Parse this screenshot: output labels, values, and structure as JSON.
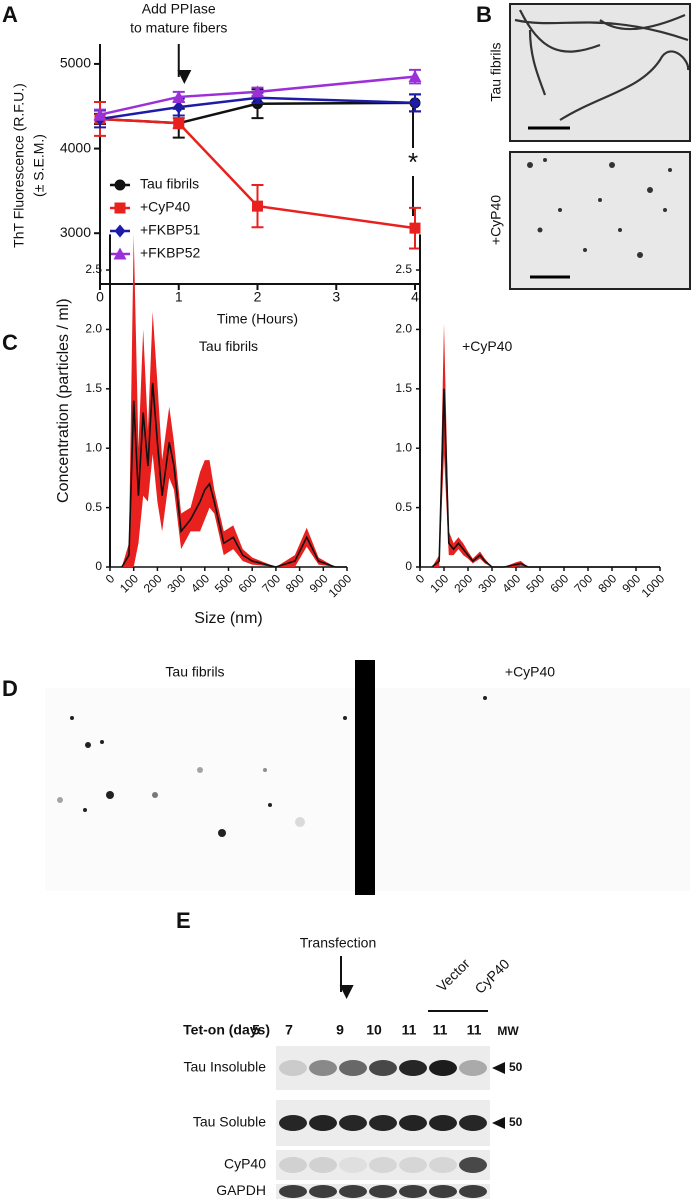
{
  "panel_labels": [
    "A",
    "B",
    "C",
    "D",
    "E"
  ],
  "chart_data": [
    {
      "type": "line",
      "xlabel": "Time (Hours)",
      "ylabel": [
        "ThT Fluorescence (R.F.U.)",
        "(± S.E.M.)"
      ],
      "annotation": [
        "Add PPIase",
        "to mature fibers"
      ],
      "significance": "*",
      "x": [
        0,
        1,
        2,
        4
      ],
      "xlim": [
        0,
        4
      ],
      "xticks": [
        0,
        1,
        2,
        3,
        4
      ],
      "ylim": [
        2400,
        5200
      ],
      "yticks": [
        3000,
        4000,
        5000
      ],
      "series": [
        {
          "name": "Tau fibrils",
          "color": "#111111",
          "marker": "circle",
          "values": [
            4350,
            4300,
            4530,
            4540
          ],
          "errors": [
            60,
            170,
            170,
            100
          ]
        },
        {
          "name": "+CyP40",
          "color": "#e8201e",
          "marker": "square",
          "values": [
            4350,
            4300,
            3320,
            3060
          ],
          "errors": [
            200,
            60,
            250,
            240
          ]
        },
        {
          "name": "+FKBP51",
          "color": "#1c1ca8",
          "marker": "diamond",
          "values": [
            4350,
            4490,
            4600,
            4540
          ],
          "errors": [
            100,
            100,
            60,
            100
          ]
        },
        {
          "name": "+FKBP52",
          "color": "#9b30d9",
          "marker": "triangle",
          "values": [
            4400,
            4610,
            4670,
            4850
          ],
          "errors": [
            60,
            60,
            50,
            80
          ]
        }
      ]
    },
    {
      "type": "band",
      "annotation": "Tau fibrils",
      "xlabel": "Size (nm)",
      "ylabel": "Concentration (particles / ml)",
      "xlim": [
        0,
        1000
      ],
      "xticks": [
        0,
        100,
        200,
        300,
        400,
        500,
        600,
        700,
        800,
        900,
        1000
      ],
      "ylim": [
        0,
        2.8
      ],
      "yticks": [
        0,
        0.5,
        {
          "value": 1,
          "label": "1.0"
        },
        1.5,
        {
          "value": 2,
          "label": "2.0"
        },
        2.5
      ],
      "x": [
        50,
        80,
        100,
        120,
        140,
        160,
        180,
        200,
        220,
        250,
        270,
        300,
        340,
        380,
        400,
        420,
        440,
        480,
        520,
        560,
        600,
        700,
        780,
        830,
        880,
        950,
        1000
      ],
      "series": [
        {
          "color": "#111111",
          "band_color": "#e8201e",
          "values": [
            0,
            0.1,
            1.4,
            0.6,
            1.3,
            0.85,
            1.55,
            1.05,
            0.6,
            1.05,
            0.85,
            0.3,
            0.4,
            0.55,
            0.65,
            0.7,
            0.55,
            0.2,
            0.25,
            0.1,
            0.05,
            0,
            0.05,
            0.25,
            0.05,
            0,
            0
          ],
          "errors": [
            0,
            0.1,
            1.4,
            0.4,
            0.7,
            0.3,
            0.6,
            0.5,
            0.3,
            0.3,
            0.2,
            0.15,
            0.1,
            0.25,
            0.25,
            0.2,
            0.1,
            0.1,
            0.1,
            0.05,
            0.03,
            0,
            0.05,
            0.08,
            0.03,
            0,
            0
          ]
        }
      ]
    },
    {
      "type": "band",
      "annotation": "+CyP40",
      "xlim": [
        0,
        1000
      ],
      "xticks": [
        0,
        100,
        200,
        300,
        400,
        500,
        600,
        700,
        800,
        900,
        1000
      ],
      "ylim": [
        0,
        2.8
      ],
      "yticks": [
        0,
        0.5,
        {
          "value": 1,
          "label": "1.0"
        },
        1.5,
        {
          "value": 2,
          "label": "2.0"
        },
        2.5
      ],
      "x": [
        50,
        80,
        100,
        120,
        140,
        160,
        180,
        200,
        220,
        250,
        270,
        300,
        350,
        400,
        420,
        450,
        500,
        1000
      ],
      "series": [
        {
          "color": "#111111",
          "band_color": "#e8201e",
          "values": [
            0,
            0.05,
            1.5,
            0.2,
            0.15,
            0.2,
            0.15,
            0.1,
            0.05,
            0.1,
            0.05,
            0,
            0,
            0.02,
            0.03,
            0,
            0,
            0
          ],
          "errors": [
            0,
            0.05,
            0.55,
            0.1,
            0.05,
            0.05,
            0.05,
            0.03,
            0.02,
            0.03,
            0.02,
            0,
            0,
            0.02,
            0.02,
            0,
            0,
            0
          ]
        }
      ]
    }
  ],
  "panel_b": {
    "labels": [
      "Tau fibrils",
      "+CyP40"
    ]
  },
  "panel_d": {
    "labels": [
      "Tau fibrils",
      "+CyP40"
    ]
  },
  "panel_e": {
    "annotation": "Transfection",
    "group_labels": [
      "Vector",
      "CyP40"
    ],
    "row_header": "Tet-on (days)",
    "lanes": [
      5,
      7,
      9,
      10,
      11,
      11,
      11
    ],
    "mw_header": "MW",
    "rows": [
      "Tau Insoluble",
      "Tau Soluble",
      "CyP40",
      "GAPDH"
    ],
    "mw_markers": [
      50,
      50
    ]
  }
}
